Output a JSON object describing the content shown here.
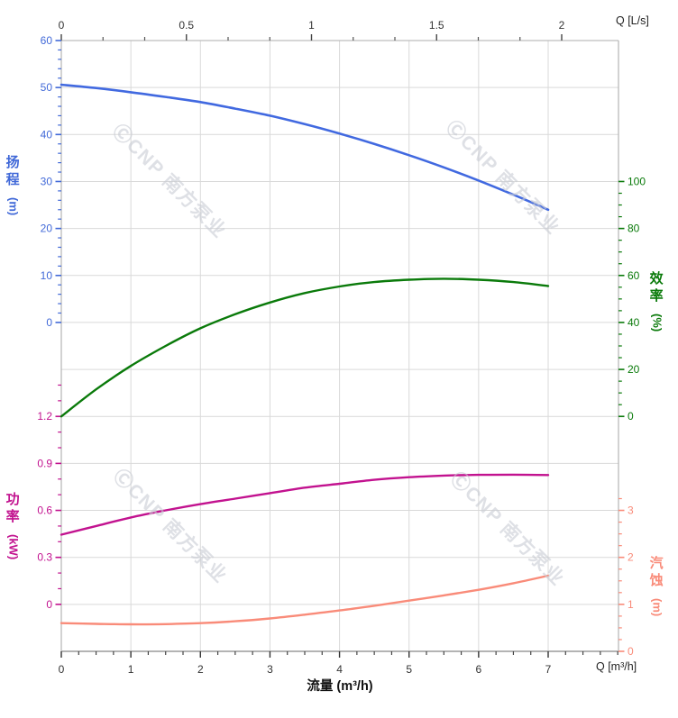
{
  "watermark": {
    "text": "ⒸCNP 南方泵业",
    "color": "#c9ccd4",
    "opacity": 0.6,
    "font_size": 21
  },
  "chart_data": {
    "type": "line",
    "title": "",
    "grid": true,
    "x_bottom": {
      "axis_label": "流量 (m³/h)",
      "unit_label": "Q [m³/h]",
      "major_ticks": [
        0,
        1,
        2,
        3,
        4,
        5,
        6,
        7
      ],
      "minor_step": 0.25,
      "minor_min": 0,
      "minor_max": 8,
      "range": [
        0,
        8.01
      ]
    },
    "x_top": {
      "unit_label": "Q [L/s]",
      "major_ticks": [
        0,
        0.5,
        1,
        1.5,
        2
      ],
      "minor_step": 0.1666667,
      "minor_min": 0,
      "minor_max": 2,
      "range": [
        0,
        2.23
      ]
    },
    "axes": {
      "head": {
        "title": "扬程",
        "unit": "(m)",
        "color": "#4169d8",
        "side": "left",
        "major_ticks": [
          60,
          50,
          40,
          30,
          20,
          10,
          0
        ],
        "minor_step": 2,
        "minor_min": 0,
        "minor_max": 60,
        "range": [
          0,
          60
        ]
      },
      "efficiency": {
        "title": "效率",
        "unit": "(%)",
        "color": "#0a7a0a",
        "side": "right",
        "major_ticks": [
          100,
          80,
          60,
          40,
          20,
          0
        ],
        "minor_step": 5,
        "minor_min": 0,
        "minor_max": 100,
        "range": [
          0,
          100
        ]
      },
      "power": {
        "title": "功率",
        "unit": "(kW)",
        "color": "#c2128f",
        "side": "left",
        "major_ticks": [
          1.2,
          0.9,
          0.6,
          0.3,
          0
        ],
        "minor_step": 0.1,
        "minor_min": 0,
        "minor_max": 1.4,
        "range": [
          0,
          1.2
        ]
      },
      "npsh": {
        "title": "汽蚀",
        "unit": "(m)",
        "color": "#f98b79",
        "side": "right",
        "major_ticks": [
          3,
          2,
          1,
          0
        ],
        "minor_step": 0.25,
        "minor_min": 0,
        "minor_max": 3.25,
        "range": [
          0,
          3
        ]
      }
    },
    "series": [
      {
        "name": "head-curve",
        "label": "扬程",
        "axis": "head",
        "color": "#4169e0",
        "width": 2.6,
        "points": [
          [
            0,
            50.6
          ],
          [
            0.5,
            49.9
          ],
          [
            1,
            49.0
          ],
          [
            1.5,
            48.0
          ],
          [
            2,
            46.9
          ],
          [
            2.5,
            45.5
          ],
          [
            3,
            44.0
          ],
          [
            3.5,
            42.2
          ],
          [
            4,
            40.2
          ],
          [
            4.5,
            38.0
          ],
          [
            5,
            35.6
          ],
          [
            5.5,
            33.0
          ],
          [
            6,
            30.2
          ],
          [
            6.5,
            27.2
          ],
          [
            7,
            24.0
          ]
        ]
      },
      {
        "name": "efficiency-curve",
        "label": "效率",
        "axis": "efficiency",
        "color": "#0a7a0a",
        "width": 2.4,
        "points": [
          [
            0,
            0
          ],
          [
            0.5,
            11.5
          ],
          [
            1,
            21.5
          ],
          [
            1.5,
            30.0
          ],
          [
            2,
            37.5
          ],
          [
            2.5,
            43.5
          ],
          [
            3,
            48.5
          ],
          [
            3.5,
            52.5
          ],
          [
            4,
            55.3
          ],
          [
            4.5,
            57.2
          ],
          [
            5,
            58.2
          ],
          [
            5.5,
            58.6
          ],
          [
            6,
            58.2
          ],
          [
            6.5,
            57.2
          ],
          [
            7,
            55.5
          ]
        ]
      },
      {
        "name": "power-curve",
        "label": "功率",
        "axis": "power",
        "color": "#c2128f",
        "width": 2.4,
        "points": [
          [
            0,
            0.445
          ],
          [
            0.5,
            0.5
          ],
          [
            1,
            0.555
          ],
          [
            1.5,
            0.6
          ],
          [
            2,
            0.64
          ],
          [
            2.5,
            0.675
          ],
          [
            3,
            0.71
          ],
          [
            3.5,
            0.745
          ],
          [
            4,
            0.77
          ],
          [
            4.5,
            0.795
          ],
          [
            5,
            0.812
          ],
          [
            5.5,
            0.822
          ],
          [
            6,
            0.827
          ],
          [
            6.5,
            0.828
          ],
          [
            7,
            0.826
          ]
        ]
      },
      {
        "name": "npsh-curve",
        "label": "汽蚀",
        "axis": "npsh",
        "color": "#f98b79",
        "width": 2.4,
        "points": [
          [
            0,
            0.6
          ],
          [
            0.5,
            0.585
          ],
          [
            1,
            0.575
          ],
          [
            1.5,
            0.58
          ],
          [
            2,
            0.6
          ],
          [
            2.5,
            0.64
          ],
          [
            3,
            0.7
          ],
          [
            3.5,
            0.78
          ],
          [
            4,
            0.87
          ],
          [
            4.5,
            0.97
          ],
          [
            5,
            1.08
          ],
          [
            5.5,
            1.19
          ],
          [
            6,
            1.31
          ],
          [
            6.5,
            1.45
          ],
          [
            7,
            1.61
          ]
        ]
      }
    ]
  }
}
